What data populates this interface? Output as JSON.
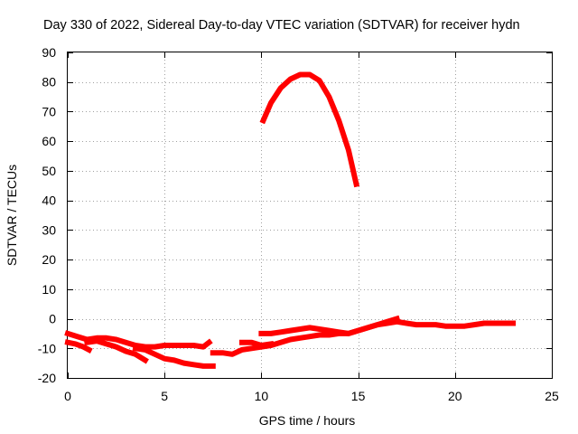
{
  "chart_data": {
    "type": "scatter",
    "title": "Day 330 of 2022, Sidereal Day-to-day VTEC variation (SDTVAR) for receiver hydn",
    "xlabel": "GPS time / hours",
    "ylabel": "SDTVAR / TECUs",
    "xlim": [
      0,
      25
    ],
    "ylim": [
      -20,
      90
    ],
    "xticks": [
      0,
      5,
      10,
      15,
      20,
      25
    ],
    "yticks": [
      -20,
      -10,
      0,
      10,
      20,
      30,
      40,
      50,
      60,
      70,
      80,
      90
    ],
    "grid": true,
    "color": "#ff0000",
    "series": [
      {
        "name": "arc-upper-a",
        "x": [
          0.0,
          0.5,
          1.0,
          1.5,
          2.0,
          2.5,
          3.0,
          3.5,
          4.0,
          4.5,
          5.0,
          5.5,
          6.0,
          6.5,
          7.0,
          7.3
        ],
        "y": [
          -5,
          -6,
          -7,
          -6.5,
          -6.5,
          -7,
          -8,
          -9,
          -9.5,
          -9.5,
          -9,
          -9,
          -9,
          -9,
          -9.5,
          -8
        ]
      },
      {
        "name": "arc-lower-a",
        "x": [
          0.0,
          0.4,
          0.8,
          1.1
        ],
        "y": [
          -8,
          -8.5,
          -9.5,
          -10.5
        ]
      },
      {
        "name": "arc-upper-b",
        "x": [
          1.0,
          1.5,
          2.0,
          2.5,
          3.0,
          3.5,
          4.0
        ],
        "y": [
          -8,
          -7.5,
          -8.5,
          -9.5,
          -11,
          -12,
          -14
        ]
      },
      {
        "name": "arc-lower-b",
        "x": [
          3.5,
          4.0,
          4.5,
          5.0,
          5.5,
          6.0,
          6.5,
          7.0,
          7.5
        ],
        "y": [
          -10,
          -10.5,
          -12,
          -13.5,
          -14,
          -15,
          -15.5,
          -16,
          -16
        ]
      },
      {
        "name": "arc-mid",
        "x": [
          7.5,
          8.0,
          8.5,
          9.0,
          9.5,
          10.0,
          10.5,
          11.0,
          11.5,
          12.0,
          12.5,
          13.0,
          13.5,
          14.0,
          14.5,
          15.0,
          15.5,
          16.0,
          16.5,
          17.0,
          17.5,
          18.0,
          18.5,
          19.0,
          19.5,
          20.0,
          20.5,
          21.0,
          21.5,
          22.0,
          22.5,
          23.0
        ],
        "y": [
          -11.5,
          -11.5,
          -12,
          -10.5,
          -10,
          -9.5,
          -9,
          -8,
          -7,
          -6.5,
          -6,
          -5.5,
          -5.5,
          -5,
          -5,
          -4,
          -3,
          -2,
          -1.5,
          -1,
          -1.5,
          -2,
          -2,
          -2,
          -2.5,
          -2.5,
          -2.5,
          -2,
          -1.5,
          -1.5,
          -1.5,
          -1.5
        ]
      },
      {
        "name": "arc-mid-upper",
        "x": [
          9.0,
          9.5,
          10.0,
          10.5
        ],
        "y": [
          -8,
          -8,
          -9,
          -8.5
        ]
      },
      {
        "name": "arc-afternoon",
        "x": [
          10.0,
          10.5,
          11.0,
          11.5,
          12.0,
          12.5,
          13.0,
          13.5,
          14.0,
          14.5,
          15.0,
          15.5,
          16.0,
          16.5,
          17.0
        ],
        "y": [
          -5,
          -5,
          -4.5,
          -4,
          -3.5,
          -3,
          -3.5,
          -4,
          -4.5,
          -5,
          -4,
          -3,
          -2,
          -1,
          0
        ]
      },
      {
        "name": "arc-peak",
        "x": [
          10.1,
          10.5,
          11.0,
          11.5,
          12.0,
          12.5,
          13.0,
          13.5,
          14.0,
          14.5,
          14.9
        ],
        "y": [
          67,
          73,
          78,
          81,
          82.5,
          82.5,
          80.5,
          75,
          67,
          57,
          45.5
        ]
      }
    ]
  }
}
